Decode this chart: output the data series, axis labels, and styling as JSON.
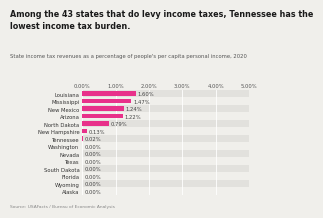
{
  "title_line1": "Among the 43 states that do levy income taxes, Tennessee has the",
  "title_line2": "lowest income tax burden.",
  "subtitle": "State income tax revenues as a percentage of people's per capita personal income, 2020",
  "source": "Source: USAFacts / Bureau of Economic Analysis",
  "categories": [
    "Louisiana",
    "Mississippi",
    "New Mexico",
    "Arizona",
    "North Dakota",
    "New Hampshire",
    "Tennessee",
    "Washington",
    "Nevada",
    "Texas",
    "South Dakota",
    "Florida",
    "Wyoming",
    "Alaska"
  ],
  "values": [
    1.6,
    1.47,
    1.24,
    1.22,
    0.79,
    0.13,
    0.02,
    0.0,
    0.0,
    0.0,
    0.0,
    0.0,
    0.0,
    0.0
  ],
  "labels": [
    "1.60%",
    "1.47%",
    "1.24%",
    "1.22%",
    "0.79%",
    "0.13%",
    "0.02%",
    "0.00%",
    "0.00%",
    "0.00%",
    "0.00%",
    "0.00%",
    "0.00%",
    "0.00%"
  ],
  "bar_color": "#e8318a",
  "bg_color": "#f0efeb",
  "row_alt_color": "#e2e1dd",
  "grid_color": "#ffffff",
  "xlim": [
    0,
    5.0
  ],
  "xticks": [
    0.0,
    1.0,
    2.0,
    3.0,
    4.0,
    5.0
  ],
  "xtick_labels": [
    "0.00%",
    "1.00%",
    "2.00%",
    "3.00%",
    "4.00%",
    "5.00%"
  ],
  "title_fontsize": 5.8,
  "subtitle_fontsize": 3.8,
  "label_fontsize": 3.8,
  "tick_fontsize": 3.8,
  "source_fontsize": 3.2
}
